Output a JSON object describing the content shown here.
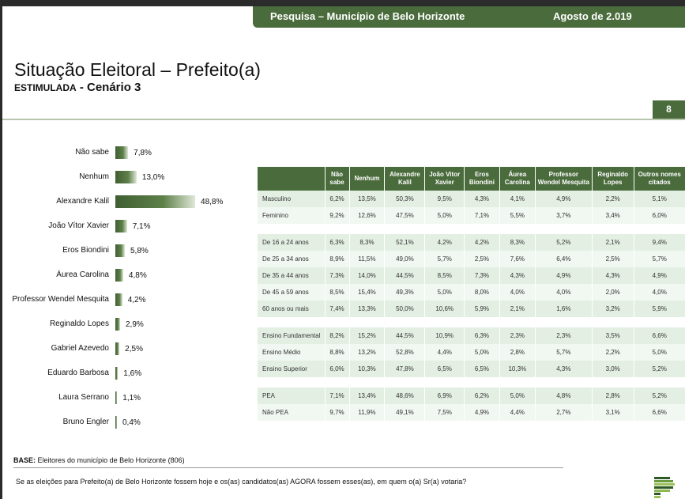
{
  "header": {
    "survey": "Pesquisa – Município de Belo Horizonte",
    "date": "Agosto de 2.019"
  },
  "title": "Situação Eleitoral – Prefeito(a)",
  "subtitle": {
    "type": "ESTIMULADA",
    "scenario": "- Cenário 3"
  },
  "page_number": "8",
  "colors": {
    "brand": "#4a6b3c",
    "row_odd": "#e4efe4",
    "row_even": "#f1f7f1"
  },
  "chart_data": {
    "type": "bar",
    "orientation": "horizontal",
    "categories": [
      "Não sabe",
      "Nenhum",
      "Alexandre Kalil",
      "João Vítor Xavier",
      "Eros Biondini",
      "Áurea Carolina",
      "Professor Wendel Mesquita",
      "Reginaldo Lopes",
      "Gabriel Azevedo",
      "Eduardo Barbosa",
      "Laura Serrano",
      "Bruno Engler"
    ],
    "values": [
      7.8,
      13.0,
      48.8,
      7.1,
      5.8,
      4.8,
      4.2,
      2.9,
      2.5,
      1.6,
      1.1,
      0.4
    ],
    "labels": [
      "7,8%",
      "13,0%",
      "48,8%",
      "7,1%",
      "5,8%",
      "4,8%",
      "4,2%",
      "2,9%",
      "2,5%",
      "1,6%",
      "1,1%",
      "0,4%"
    ]
  },
  "table": {
    "headers": [
      "Não sabe",
      "Nenhum",
      "Alexandre Kalil",
      "João Vitor Xavier",
      "Eros Biondini",
      "Áurea Carolina",
      "Professor Wendel Mesquita",
      "Reginaldo Lopes",
      "Outros nomes citados"
    ],
    "groups": [
      [
        [
          "Masculino",
          "6,2%",
          "13,5%",
          "50,3%",
          "9,5%",
          "4,3%",
          "4,1%",
          "4,9%",
          "2,2%",
          "5,1%"
        ],
        [
          "Feminino",
          "9,2%",
          "12,6%",
          "47,5%",
          "5,0%",
          "7,1%",
          "5,5%",
          "3,7%",
          "3,4%",
          "6,0%"
        ]
      ],
      [
        [
          "De 16 a 24 anos",
          "6,3%",
          "8,3%",
          "52,1%",
          "4,2%",
          "4,2%",
          "8,3%",
          "5,2%",
          "2,1%",
          "9,4%"
        ],
        [
          "De 25 a 34 anos",
          "8,9%",
          "11,5%",
          "49,0%",
          "5,7%",
          "2,5%",
          "7,6%",
          "6,4%",
          "2,5%",
          "5,7%"
        ],
        [
          "De 35 a 44 anos",
          "7,3%",
          "14,0%",
          "44,5%",
          "8,5%",
          "7,3%",
          "4,3%",
          "4,9%",
          "4,3%",
          "4,9%"
        ],
        [
          "De 45 a 59 anos",
          "8,5%",
          "15,4%",
          "49,3%",
          "5,0%",
          "8,0%",
          "4,0%",
          "4,0%",
          "2,0%",
          "4,0%"
        ],
        [
          "60 anos ou mais",
          "7,4%",
          "13,3%",
          "50,0%",
          "10,6%",
          "5,9%",
          "2,1%",
          "1,6%",
          "3,2%",
          "5,9%"
        ]
      ],
      [
        [
          "Ensino Fundamental",
          "8,2%",
          "15,2%",
          "44,5%",
          "10,9%",
          "6,3%",
          "2,3%",
          "2,3%",
          "3,5%",
          "6,6%"
        ],
        [
          "Ensino Médio",
          "8,8%",
          "13,2%",
          "52,8%",
          "4,4%",
          "5,0%",
          "2,8%",
          "5,7%",
          "2,2%",
          "5,0%"
        ],
        [
          "Ensino Superior",
          "6,0%",
          "10,3%",
          "47,8%",
          "6,5%",
          "6,5%",
          "10,3%",
          "4,3%",
          "3,0%",
          "5,2%"
        ]
      ],
      [
        [
          "PEA",
          "7,1%",
          "13,4%",
          "48,6%",
          "6,9%",
          "6,2%",
          "5,0%",
          "4,8%",
          "2,8%",
          "5,2%"
        ],
        [
          "Não PEA",
          "9,7%",
          "11,9%",
          "49,1%",
          "7,5%",
          "4,9%",
          "4,4%",
          "2,7%",
          "3,1%",
          "6,6%"
        ]
      ]
    ]
  },
  "footer": {
    "base_label": "BASE:",
    "base_text": "Eleitores do município de Belo Horizonte (806)",
    "question": "Se as eleições para Prefeito(a) de Belo Horizonte fossem hoje e os(as) candidatos(as) AGORA fossem esses(as), em quem o(a) Sr(a) votaria?"
  }
}
